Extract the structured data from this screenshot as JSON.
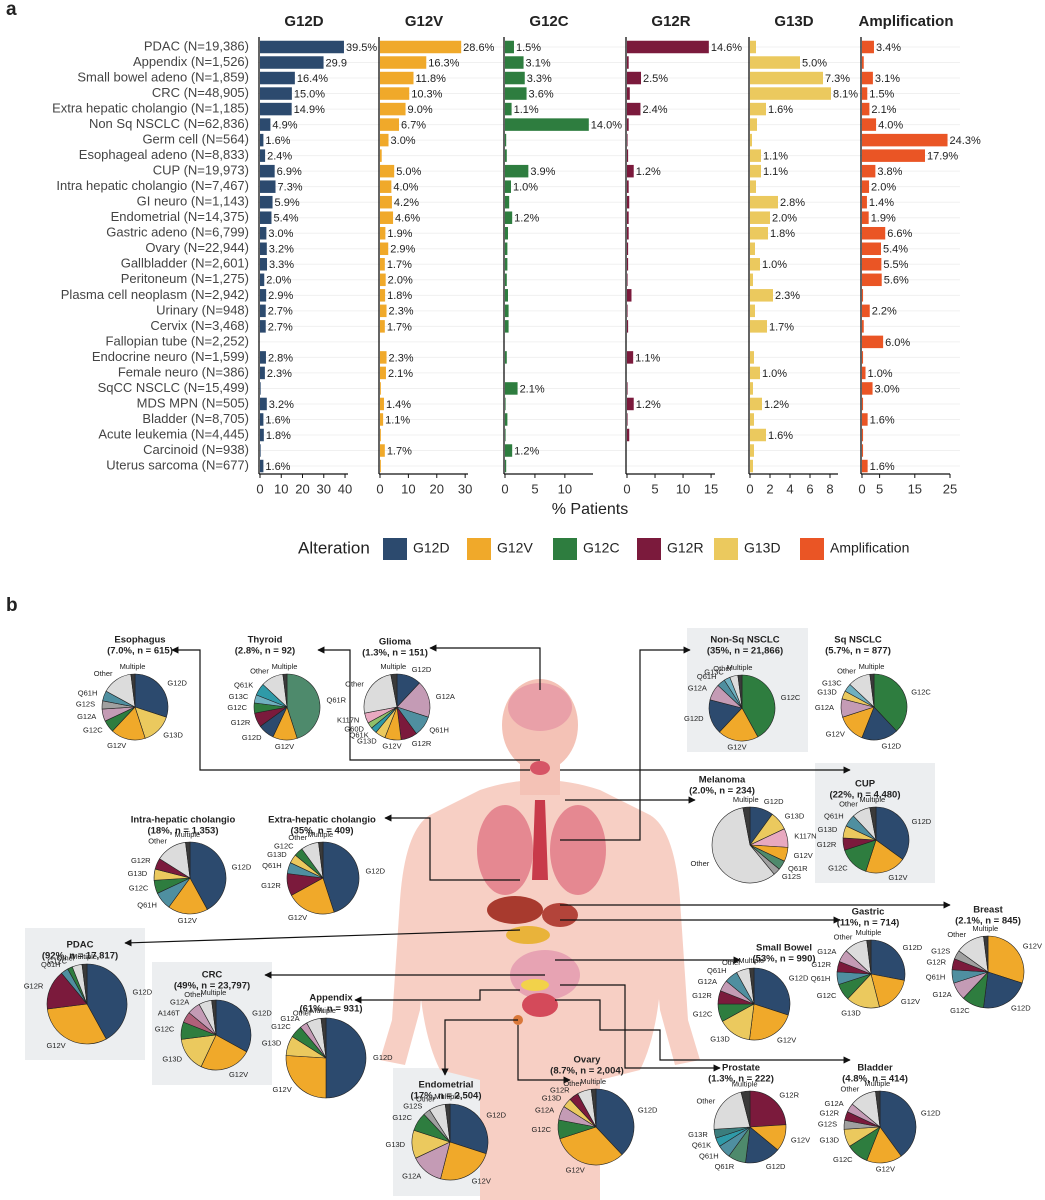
{
  "panels": [
    "a",
    "b"
  ],
  "slice_colors": {
    "G12D": "#2c4a6e",
    "G12V": "#f0a92a",
    "G12C": "#2e7d3f",
    "G12R": "#7b1a3c",
    "G13D": "#ebc95e",
    "G12A": "#c49bb5",
    "G12S": "#a0a0a0",
    "Q61H": "#4f8fa0",
    "Q61K": "#2f9aa8",
    "Q61R": "#4e8a6c",
    "G13C": "#6fb0c0",
    "G13R": "#3b7d7d",
    "K117N": "#e8a9c0",
    "G60D": "#8fbf6a",
    "A146T": "#b0607a",
    "Other": "#dcdcdc",
    "Multiple": "#3a3a3a"
  },
  "chart_data": [
    {
      "type": "facet_bar",
      "xlabel": "% Patients",
      "legend_title": "Alteration",
      "categories": [
        "PDAC (N=19,386)",
        "Appendix (N=1,526)",
        "Small bowel adeno (N=1,859)",
        "CRC (N=48,905)",
        "Extra  hepatic cholangio (N=1,185)",
        "Non Sq NSCLC (N=62,836)",
        "Germ cell (N=564)",
        "Esophageal adeno (N=8,833)",
        "CUP (N=19,973)",
        "Intra  hepatic cholangio (N=7,467)",
        "GI neuro (N=1,143)",
        "Endometrial (N=14,375)",
        "Gastric adeno (N=6,799)",
        "Ovary (N=22,944)",
        "Gallbladder (N=2,601)",
        "Peritoneum (N=1,275)",
        "Plasma cell neoplasm (N=2,942)",
        "Urinary (N=948)",
        "Cervix (N=3,468)",
        "Fallopian tube (N=2,252)",
        "Endocrine neuro (N=1,599)",
        "Female neuro (N=386)",
        "SqCC NSCLC (N=15,499)",
        "MDS  MPN (N=505)",
        "Bladder (N=8,705)",
        "Acute leukemia (N=4,445)",
        "Carcinoid (N=938)",
        "Uterus sarcoma (N=677)"
      ],
      "series": [
        {
          "name": "G12D",
          "color": "#2c4a6e",
          "xlim": [
            0,
            41.4
          ],
          "xticks": [
            0,
            10,
            20,
            30,
            40
          ],
          "values": [
            39.5,
            29.9,
            16.4,
            15.0,
            14.9,
            4.9,
            1.6,
            2.4,
            6.9,
            7.3,
            5.9,
            5.4,
            3.0,
            3.2,
            3.3,
            2.0,
            2.9,
            2.7,
            2.7,
            0,
            2.8,
            2.3,
            0.3,
            3.2,
            1.6,
            1.8,
            0.3,
            1.6
          ],
          "value_labels": [
            "39.5%",
            "29.9",
            "16.4%",
            "15.0%",
            "14.9%",
            "4.9%",
            "1.6%",
            "2.4%",
            "6.9%",
            "7.3%",
            "5.9%",
            "5.4%",
            "3.0%",
            "3.2%",
            "3.3%",
            "2.0%",
            "2.9%",
            "2.7%",
            "2.7%",
            null,
            "2.8%",
            "2.3%",
            null,
            "3.2%",
            "1.6%",
            "1.8%",
            null,
            "1.6%"
          ]
        },
        {
          "name": "G12V",
          "color": "#f0a92a",
          "xlim": [
            0,
            31
          ],
          "xticks": [
            0,
            10,
            20,
            30
          ],
          "values": [
            28.6,
            16.3,
            11.8,
            10.3,
            9.0,
            6.7,
            3.0,
            0.6,
            5.0,
            4.0,
            4.2,
            4.6,
            1.9,
            2.9,
            1.7,
            2.0,
            1.8,
            2.3,
            1.7,
            0,
            2.3,
            2.1,
            0.3,
            1.4,
            1.1,
            0.3,
            1.7,
            0.3
          ],
          "value_labels": [
            "28.6%",
            "16.3%",
            "11.8%",
            "10.3%",
            "9.0%",
            "6.7%",
            "3.0%",
            null,
            "5.0%",
            "4.0%",
            "4.2%",
            "4.6%",
            "1.9%",
            "2.9%",
            "1.7%",
            "2.0%",
            "1.8%",
            "2.3%",
            "1.7%",
            null,
            "2.3%",
            "2.1%",
            null,
            "1.4%",
            "1.1%",
            null,
            "1.7%",
            null
          ]
        },
        {
          "name": "G12C",
          "color": "#2e7d3f",
          "xlim": [
            0,
            14.7
          ],
          "xticks": [
            0,
            5,
            10
          ],
          "values": [
            1.5,
            3.1,
            3.3,
            3.6,
            1.1,
            14.0,
            0.2,
            0.3,
            3.9,
            1.0,
            0.7,
            1.2,
            0.5,
            0.4,
            0.4,
            0.3,
            0.5,
            0.6,
            0.6,
            0,
            0.3,
            0,
            2.1,
            0.1,
            0.4,
            0.1,
            1.2,
            0.2
          ],
          "value_labels": [
            "1.5%",
            "3.1%",
            "3.3%",
            "3.6%",
            "1.1%",
            "14.0%",
            null,
            null,
            "3.9%",
            "1.0%",
            null,
            "1.2%",
            null,
            null,
            null,
            null,
            null,
            null,
            null,
            null,
            null,
            null,
            "2.1%",
            null,
            null,
            null,
            "1.2%",
            null
          ]
        },
        {
          "name": "G12R",
          "color": "#7b1a3c",
          "xlim": [
            0,
            15.7
          ],
          "xticks": [
            0,
            5,
            10,
            15
          ],
          "values": [
            14.6,
            0.3,
            2.5,
            0.5,
            2.4,
            0.3,
            0.1,
            0.2,
            1.2,
            0.3,
            0.4,
            0.3,
            0.3,
            0.2,
            0.2,
            0.1,
            0.8,
            0.1,
            0.2,
            0,
            1.1,
            0,
            0.1,
            1.2,
            0.1,
            0.4,
            0,
            0
          ],
          "value_labels": [
            "14.6%",
            null,
            "2.5%",
            null,
            "2.4%",
            null,
            null,
            null,
            "1.2%",
            null,
            null,
            null,
            null,
            null,
            null,
            null,
            null,
            null,
            null,
            null,
            "1.1%",
            null,
            null,
            "1.2%",
            null,
            null,
            null,
            null
          ]
        },
        {
          "name": "G13D",
          "color": "#ebc95e",
          "xlim": [
            0,
            8.8
          ],
          "xticks": [
            0,
            2,
            4,
            6,
            8
          ],
          "values": [
            0.6,
            5.0,
            7.3,
            8.1,
            1.6,
            0.7,
            0.2,
            1.1,
            1.1,
            0.6,
            2.8,
            2.0,
            1.8,
            0.5,
            1.0,
            0.3,
            2.3,
            0.5,
            1.7,
            0,
            0.4,
            1.0,
            0.3,
            1.2,
            0.4,
            1.6,
            0.4,
            0.3
          ],
          "value_labels": [
            null,
            "5.0%",
            "7.3%",
            "8.1%",
            "1.6%",
            null,
            null,
            "1.1%",
            "1.1%",
            null,
            "2.8%",
            "2.0%",
            "1.8%",
            null,
            "1.0%",
            null,
            "2.3%",
            null,
            "1.7%",
            null,
            null,
            "1.0%",
            null,
            "1.2%",
            null,
            "1.6%",
            null,
            null
          ]
        },
        {
          "name": "Amplification",
          "color": "#ea5525",
          "xlim": [
            0,
            25
          ],
          "xticks": [
            0,
            5,
            15,
            25
          ],
          "values": [
            3.4,
            0.5,
            3.1,
            1.5,
            2.1,
            4.0,
            24.3,
            17.9,
            3.8,
            2.0,
            1.4,
            1.9,
            6.6,
            5.4,
            5.5,
            5.6,
            0.3,
            2.2,
            0.5,
            6.0,
            0.3,
            1.0,
            3.0,
            0.3,
            1.6,
            0.3,
            0.3,
            1.6
          ],
          "value_labels": [
            "3.4%",
            null,
            "3.1%",
            "1.5%",
            "2.1%",
            "4.0%",
            "24.3%",
            "17.9%",
            "3.8%",
            "2.0%",
            "1.4%",
            "1.9%",
            "6.6%",
            "5.4%",
            "5.5%",
            "5.6%",
            null,
            "2.2%",
            null,
            "6.0%",
            null,
            "1.0%",
            "3.0%",
            null,
            "1.6%",
            null,
            null,
            "1.6%"
          ]
        }
      ]
    },
    {
      "type": "pie",
      "title": "Esophagus",
      "subtitle": "(7.0%, n = 615)",
      "categories": [
        "G12D",
        "G13D",
        "G12V",
        "G12C",
        "G12A",
        "G12S",
        "Q61H",
        "Other",
        "Multiple"
      ],
      "values": [
        30,
        15,
        17,
        6,
        6,
        4,
        5,
        15,
        2
      ]
    },
    {
      "type": "pie",
      "title": "Thyroid",
      "subtitle": "(2.8%, n = 92)",
      "categories": [
        "Q61R",
        "G12V",
        "G12D",
        "G12R",
        "G12C",
        "G13C",
        "Q61K",
        "Other",
        "Multiple"
      ],
      "values": [
        45,
        12,
        8,
        7,
        5,
        4,
        6,
        11,
        2
      ]
    },
    {
      "type": "pie",
      "title": "Glioma",
      "subtitle": "(1.3%, n = 151)",
      "categories": [
        "G12D",
        "G12A",
        "Q61H",
        "G12R",
        "G12V",
        "G13D",
        "Q61K",
        "G60D",
        "K117N",
        "Other",
        "Multiple"
      ],
      "values": [
        12,
        18,
        10,
        8,
        8,
        5,
        3,
        3,
        5,
        25,
        3
      ]
    },
    {
      "type": "pie",
      "title": "Non-Sq NSCLC",
      "subtitle": "(35%, n = 21,866)",
      "highlight": true,
      "categories": [
        "G12C",
        "G12V",
        "G12D",
        "G12A",
        "Q61H",
        "G13C",
        "Other",
        "Multiple"
      ],
      "values": [
        42,
        20,
        17,
        8,
        4,
        3,
        4,
        2
      ]
    },
    {
      "type": "pie",
      "title": "Sq NSCLC",
      "subtitle": "(5.7%, n = 877)",
      "categories": [
        "G12C",
        "G12D",
        "G12V",
        "G12A",
        "G13D",
        "G13C",
        "Other",
        "Multiple"
      ],
      "values": [
        38,
        18,
        14,
        9,
        4,
        4,
        11,
        2
      ]
    },
    {
      "type": "pie",
      "title": "Melanoma",
      "subtitle": "(2.0%, n = 234)",
      "categories": [
        "G12D",
        "G13D",
        "K117N",
        "G12V",
        "Q61R",
        "G12S",
        "Other",
        "Multiple"
      ],
      "values": [
        10,
        8,
        8,
        6,
        4,
        3,
        58,
        3
      ]
    },
    {
      "type": "pie",
      "title": "CUP",
      "subtitle": "(22%, n = 4,480)",
      "highlight": true,
      "categories": [
        "G12D",
        "G12V",
        "G12C",
        "G12R",
        "G13D",
        "Q61H",
        "Other",
        "Multiple"
      ],
      "values": [
        35,
        20,
        15,
        6,
        6,
        6,
        9,
        3
      ]
    },
    {
      "type": "pie",
      "title": "Intra-hepatic cholangio",
      "subtitle": "(18%, n = 1,353)",
      "categories": [
        "G12D",
        "G12V",
        "Q61H",
        "G12C",
        "G13D",
        "G12R",
        "Other",
        "Multiple"
      ],
      "values": [
        42,
        18,
        8,
        6,
        5,
        5,
        14,
        2
      ]
    },
    {
      "type": "pie",
      "title": "Extra-hepatic cholangio",
      "subtitle": "(35%, n = 409)",
      "categories": [
        "G12D",
        "G12V",
        "G12R",
        "Q61H",
        "G13D",
        "G12C",
        "Other",
        "Multiple"
      ],
      "values": [
        45,
        22,
        10,
        5,
        4,
        4,
        8,
        2
      ]
    },
    {
      "type": "pie",
      "title": "Breast",
      "subtitle": "(2.1%, n = 845)",
      "categories": [
        "G12V",
        "G12D",
        "G12C",
        "G12A",
        "Q61H",
        "G12R",
        "G12S",
        "Other",
        "Multiple"
      ],
      "values": [
        30,
        22,
        10,
        8,
        6,
        5,
        4,
        13,
        2
      ]
    },
    {
      "type": "pie",
      "title": "Gastric",
      "subtitle": "(11%, n = 714)",
      "categories": [
        "G12D",
        "G12V",
        "G13D",
        "G12C",
        "Q61H",
        "G12R",
        "G12A",
        "Other",
        "Multiple"
      ],
      "values": [
        28,
        18,
        16,
        8,
        6,
        5,
        6,
        11,
        2
      ]
    },
    {
      "type": "pie",
      "title": "PDAC",
      "subtitle": "(92%, n = 17,817)",
      "highlight": true,
      "categories": [
        "G12D",
        "G12V",
        "G12R",
        "Q61H",
        "G12C",
        "Other",
        "Multiple"
      ],
      "values": [
        42,
        31,
        16,
        3,
        2,
        4,
        2
      ]
    },
    {
      "type": "pie",
      "title": "CRC",
      "subtitle": "(49%, n = 23,797)",
      "highlight": true,
      "categories": [
        "G12D",
        "G12V",
        "G13D",
        "G12C",
        "A146T",
        "G12A",
        "Other",
        "Multiple"
      ],
      "values": [
        33,
        24,
        16,
        8,
        5,
        6,
        6,
        2
      ]
    },
    {
      "type": "pie",
      "title": "Appendix",
      "subtitle": "(61%, n = 931)",
      "categories": [
        "G12D",
        "G12V",
        "G13D",
        "G12C",
        "G12A",
        "Other",
        "Multiple"
      ],
      "values": [
        50,
        26,
        8,
        5,
        3,
        6,
        2
      ]
    },
    {
      "type": "pie",
      "title": "Small Bowel",
      "subtitle": "(53%, n = 990)",
      "categories": [
        "G12D",
        "G12V",
        "G13D",
        "G12C",
        "G12R",
        "G12A",
        "Q61H",
        "Other",
        "Multiple"
      ],
      "values": [
        30,
        22,
        15,
        8,
        6,
        5,
        6,
        6,
        2
      ]
    },
    {
      "type": "pie",
      "title": "Endometrial",
      "subtitle": "(17%, n = 2,504)",
      "highlight": true,
      "categories": [
        "G12D",
        "G12V",
        "G12A",
        "G13D",
        "G12C",
        "G12S",
        "Other",
        "Multiple"
      ],
      "values": [
        30,
        24,
        14,
        12,
        8,
        3,
        7,
        2
      ]
    },
    {
      "type": "pie",
      "title": "Ovary",
      "subtitle": "(8.7%, n = 2,004)",
      "categories": [
        "G12D",
        "G12V",
        "G12C",
        "G12A",
        "G13D",
        "G12R",
        "Other",
        "Multiple"
      ],
      "values": [
        38,
        32,
        8,
        6,
        4,
        4,
        6,
        2
      ]
    },
    {
      "type": "pie",
      "title": "Prostate",
      "subtitle": "(1.3%, n = 222)",
      "categories": [
        "G12R",
        "G12V",
        "G12D",
        "Q61R",
        "Q61H",
        "Q61K",
        "G13R",
        "Other",
        "Multiple"
      ],
      "values": [
        24,
        12,
        16,
        8,
        6,
        4,
        4,
        22,
        4
      ]
    },
    {
      "type": "pie",
      "title": "Bladder",
      "subtitle": "(4.8%, n = 414)",
      "categories": [
        "G12D",
        "G12V",
        "G12C",
        "G13D",
        "G12S",
        "G12R",
        "G12A",
        "Other",
        "Multiple"
      ],
      "values": [
        40,
        16,
        10,
        8,
        4,
        4,
        4,
        12,
        2
      ]
    }
  ]
}
